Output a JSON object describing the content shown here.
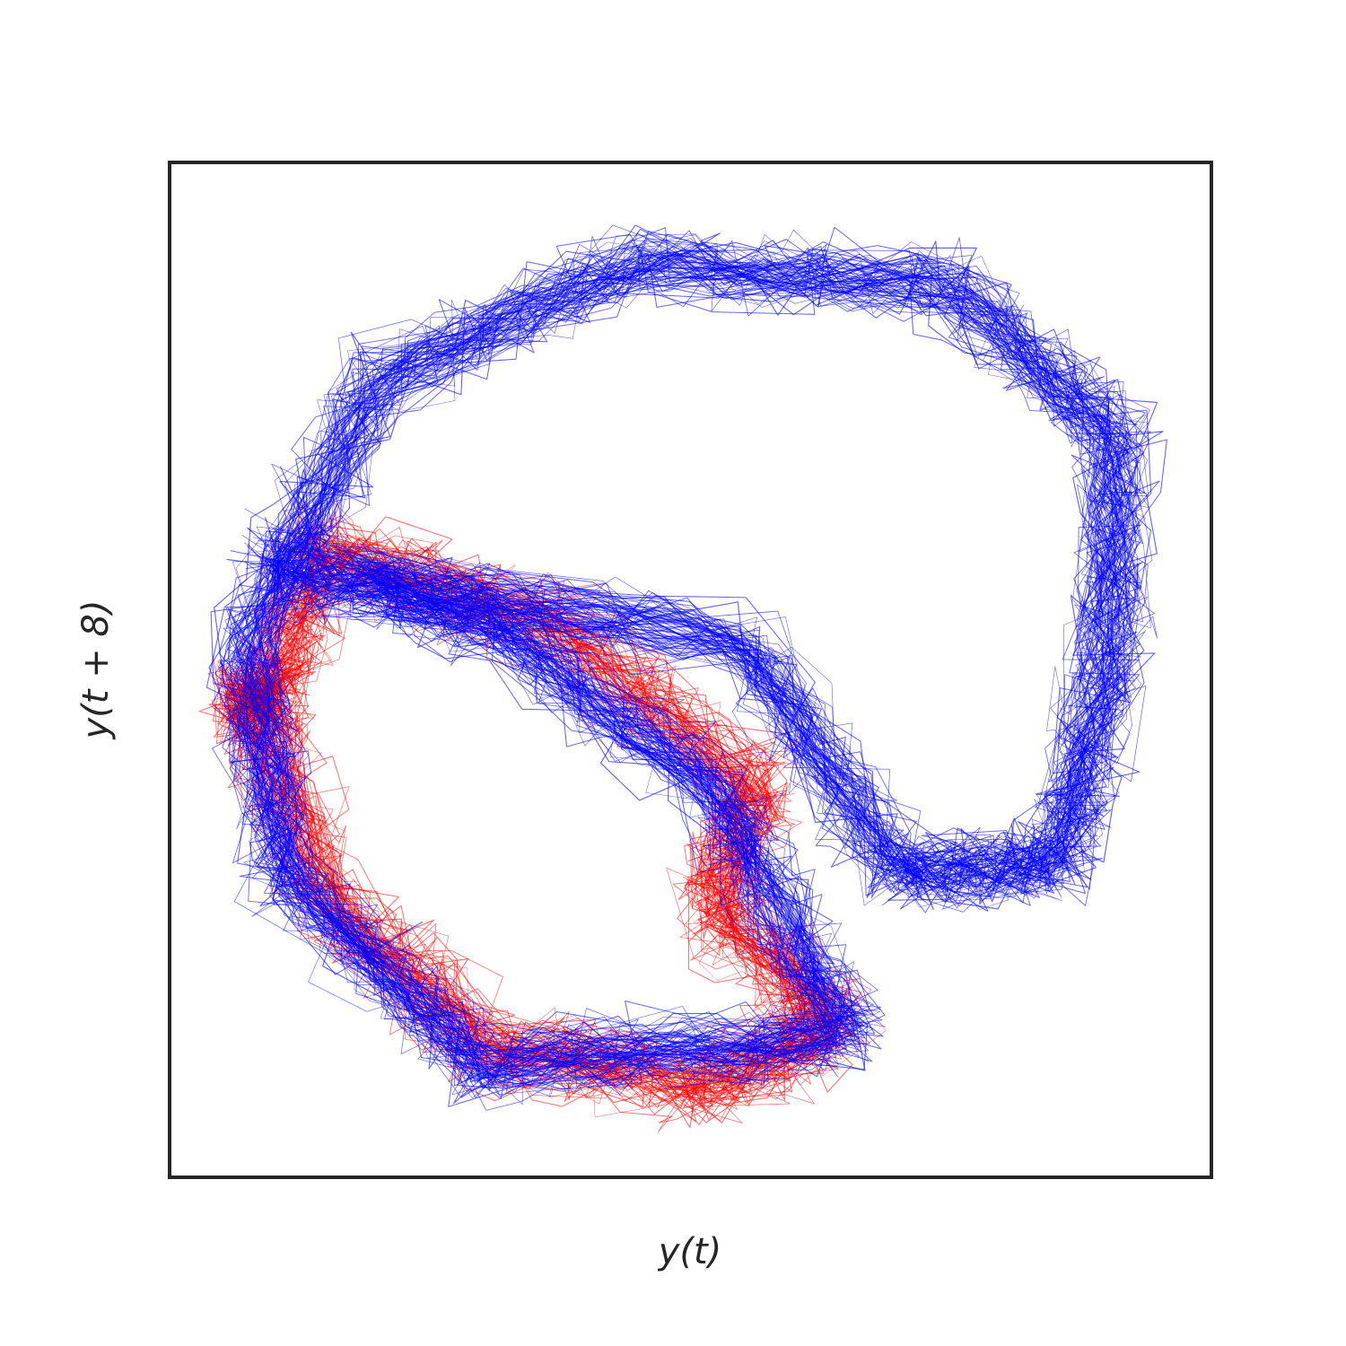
{
  "chart_data": {
    "type": "line",
    "title": "",
    "xlabel": "y(t)",
    "ylabel": "y(t + 8)",
    "xticks": [],
    "yticks": [],
    "xlim": [
      -1.0,
      1.0
    ],
    "ylim": [
      -1.0,
      1.0
    ],
    "grid": false,
    "legend": "none",
    "series": [
      {
        "color": "#ff0000",
        "stroke_opacity": 0.55,
        "description_points": [
          [
            -0.82,
            -0.06
          ],
          [
            -0.7,
            0.24
          ],
          [
            -0.25,
            0.08
          ],
          [
            0.12,
            -0.22
          ],
          [
            0.05,
            -0.46
          ],
          [
            0.28,
            -0.7
          ],
          [
            0.03,
            -0.82
          ],
          [
            -0.4,
            -0.74
          ],
          [
            -0.7,
            -0.44
          ],
          [
            -0.85,
            -0.06
          ]
        ]
      },
      {
        "color": "#0000ff",
        "stroke_opacity": 0.6,
        "description_points": [
          [
            -0.8,
            0.22
          ],
          [
            -0.4,
            0.1
          ],
          [
            0.05,
            -0.24
          ],
          [
            0.3,
            -0.72
          ],
          [
            -0.4,
            -0.78
          ],
          [
            -0.78,
            -0.4
          ],
          [
            -0.85,
            0.05
          ],
          [
            -0.6,
            0.58
          ],
          [
            -0.1,
            0.8
          ],
          [
            0.5,
            0.76
          ],
          [
            0.82,
            0.45
          ],
          [
            0.8,
            0.0
          ],
          [
            0.7,
            -0.38
          ],
          [
            0.4,
            -0.4
          ],
          [
            0.1,
            0.05
          ]
        ]
      }
    ]
  }
}
